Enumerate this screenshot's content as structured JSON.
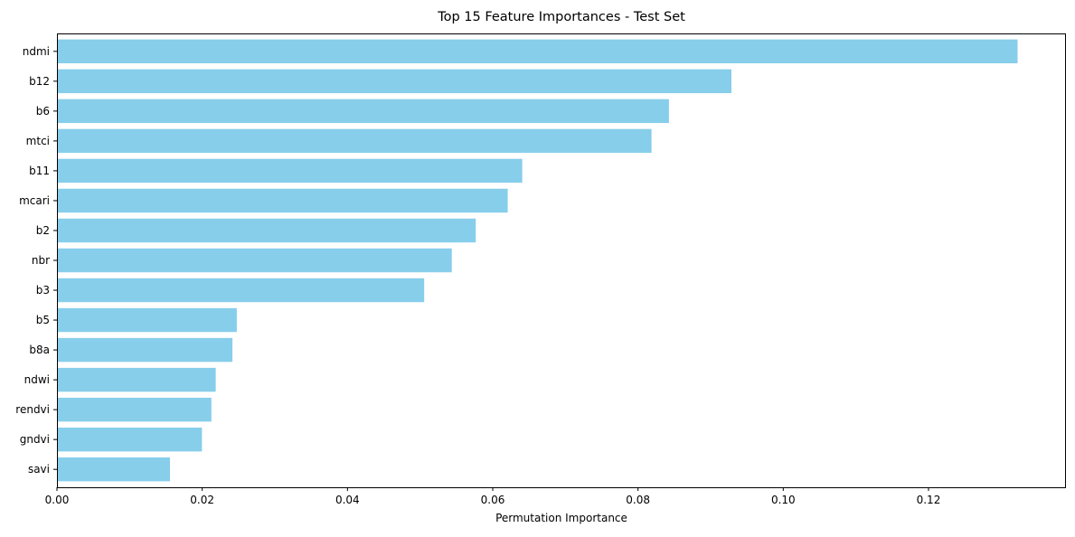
{
  "chart_data": {
    "type": "bar",
    "orientation": "horizontal",
    "title": "Top 15 Feature Importances - Test Set",
    "xlabel": "Permutation Importance",
    "ylabel": "",
    "categories": [
      "ndmi",
      "b12",
      "b6",
      "mtci",
      "b11",
      "mcari",
      "b2",
      "nbr",
      "b3",
      "b5",
      "b8a",
      "ndwi",
      "rendvi",
      "gndvi",
      "savi"
    ],
    "values": [
      0.1322,
      0.0928,
      0.0842,
      0.0818,
      0.064,
      0.062,
      0.0576,
      0.0543,
      0.0505,
      0.0247,
      0.0241,
      0.0218,
      0.0212,
      0.0199,
      0.0155
    ],
    "xlim": [
      0.0,
      0.1388
    ],
    "xticks": [
      0.0,
      0.02,
      0.04,
      0.06,
      0.08,
      0.1,
      0.12
    ],
    "xtick_labels": [
      "0.00",
      "0.02",
      "0.04",
      "0.06",
      "0.08",
      "0.10",
      "0.12"
    ],
    "bar_color": "#87ceeb",
    "grid": false,
    "legend": "none"
  }
}
